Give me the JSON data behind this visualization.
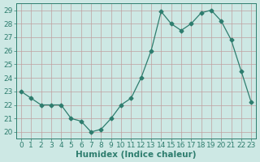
{
  "x": [
    0,
    1,
    2,
    3,
    4,
    5,
    6,
    7,
    8,
    9,
    10,
    11,
    12,
    13,
    14,
    15,
    16,
    17,
    18,
    19,
    20,
    21,
    22,
    23
  ],
  "y": [
    23,
    22.5,
    22,
    22,
    22,
    21,
    20.8,
    20,
    20.2,
    21.0,
    22.0,
    22.5,
    24.0,
    26.0,
    28.9,
    28.0,
    27.5,
    28.0,
    28.8,
    29.0,
    28.2,
    26.8,
    24.5,
    22.2
  ],
  "line_color": "#2e7d6e",
  "marker": "D",
  "marker_size": 2.5,
  "bg_color": "#cde8e4",
  "grid_color": "#c0a0a0",
  "xlabel": "Humidex (Indice chaleur)",
  "xlim": [
    -0.5,
    23.5
  ],
  "ylim": [
    19.5,
    29.5
  ],
  "yticks": [
    20,
    21,
    22,
    23,
    24,
    25,
    26,
    27,
    28,
    29
  ],
  "xticks": [
    0,
    1,
    2,
    3,
    4,
    5,
    6,
    7,
    8,
    9,
    10,
    11,
    12,
    13,
    14,
    15,
    16,
    17,
    18,
    19,
    20,
    21,
    22,
    23
  ],
  "tick_color": "#2e7d6e",
  "tick_fontsize": 6.5,
  "xlabel_fontsize": 7.5,
  "xlabel_color": "#2e7d6e"
}
